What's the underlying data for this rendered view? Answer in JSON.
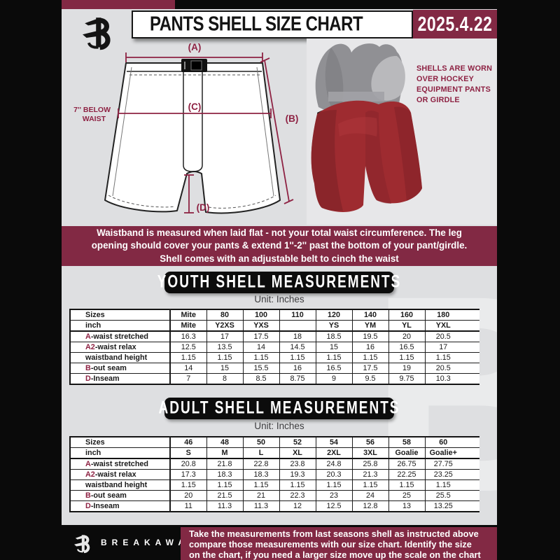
{
  "header": {
    "title": "PANTS SHELL SIZE CHART",
    "date": "2025.4.22"
  },
  "diagram": {
    "label_a": "(A)",
    "label_b": "(B)",
    "label_c": "(C)",
    "label_d": "(D)",
    "below_waist_line1": "7'' BELOW",
    "below_waist_line2": "WAIST",
    "photo_note": "SHELLS ARE WORN OVER HOCKEY EQUIPMENT PANTS OR GIRDLE"
  },
  "info_banner": {
    "lines": [
      "Waistband is measured when laid flat - not your total waist circumference. The leg",
      "opening should cover your pants & extend 1''-2'' past the bottom of your pant/girdle.",
      "Shell comes with an adjustable belt to cinch the waist"
    ]
  },
  "youth": {
    "banner": "YOUTH SHELL MEASUREMENTS",
    "unit": "Unit: Inches",
    "rows": [
      {
        "header": true,
        "thick": false,
        "prefix": "",
        "label": "Sizes",
        "values": [
          "Mite",
          "80",
          "100",
          "110",
          "120",
          "140",
          "160",
          "180"
        ]
      },
      {
        "header": true,
        "thick": true,
        "prefix": "",
        "label": "inch",
        "values": [
          "Mite",
          "Y2XS",
          "YXS",
          "",
          "YS",
          "YM",
          "YL",
          "YXL"
        ]
      },
      {
        "header": false,
        "thick": false,
        "prefix": "A",
        "label": "-waist stretched",
        "values": [
          "16.3",
          "17",
          "17.5",
          "18",
          "18.5",
          "19.5",
          "20",
          "20.5"
        ]
      },
      {
        "header": false,
        "thick": false,
        "prefix": "A2",
        "label": "-waist relax",
        "values": [
          "12.5",
          "13.5",
          "14",
          "14.5",
          "15",
          "16",
          "16.5",
          "17"
        ]
      },
      {
        "header": false,
        "thick": false,
        "prefix": "",
        "label": "waistband height",
        "values": [
          "1.15",
          "1.15",
          "1.15",
          "1.15",
          "1.15",
          "1.15",
          "1.15",
          "1.15"
        ]
      },
      {
        "header": false,
        "thick": false,
        "prefix": "B",
        "label": "-out seam",
        "values": [
          "14",
          "15",
          "15.5",
          "16",
          "16.5",
          "17.5",
          "19",
          "20.5"
        ]
      },
      {
        "header": false,
        "thick": false,
        "prefix": "D",
        "label": "-Inseam",
        "values": [
          "7",
          "8",
          "8.5",
          "8.75",
          "9",
          "9.5",
          "9.75",
          "10.3"
        ]
      }
    ]
  },
  "adult": {
    "banner": "ADULT SHELL MEASUREMENTS",
    "unit": "Unit: Inches",
    "rows": [
      {
        "header": true,
        "thick": false,
        "prefix": "",
        "label": "Sizes",
        "values": [
          "46",
          "48",
          "50",
          "52",
          "54",
          "56",
          "58",
          "60"
        ]
      },
      {
        "header": true,
        "thick": true,
        "prefix": "",
        "label": "inch",
        "values": [
          "S",
          "M",
          "L",
          "XL",
          "2XL",
          "3XL",
          "Goalie",
          "Goalie+"
        ]
      },
      {
        "header": false,
        "thick": false,
        "prefix": "A",
        "label": "-waist stretched",
        "values": [
          "20.8",
          "21.8",
          "22.8",
          "23.8",
          "24.8",
          "25.8",
          "26.75",
          "27.75"
        ]
      },
      {
        "header": false,
        "thick": false,
        "prefix": "A2",
        "label": "-waist relax",
        "values": [
          "17.3",
          "18.3",
          "18.3",
          "19.3",
          "20.3",
          "21.3",
          "22.25",
          "23.25"
        ]
      },
      {
        "header": false,
        "thick": false,
        "prefix": "",
        "label": "waistband height",
        "values": [
          "1.15",
          "1.15",
          "1.15",
          "1.15",
          "1.15",
          "1.15",
          "1.15",
          "1.15"
        ]
      },
      {
        "header": false,
        "thick": false,
        "prefix": "B",
        "label": "-out seam",
        "values": [
          "20",
          "21.5",
          "21",
          "22.3",
          "23",
          "24",
          "25",
          "25.5"
        ]
      },
      {
        "header": false,
        "thick": false,
        "prefix": "D",
        "label": "-Inseam",
        "values": [
          "11",
          "11.3",
          "11.3",
          "12",
          "12.5",
          "12.8",
          "13",
          "13.25"
        ]
      }
    ]
  },
  "footer": {
    "brand": "BREAKAWAY",
    "lines": [
      "Take the measurements from last seasons shell as instructed above",
      "compare those measurements  with our size chart. Identify the size",
      "on the chart, if you need a larger size move up the scale on the chart"
    ]
  },
  "colors": {
    "maroon": "#822944",
    "accent_maroon": "#8e2243",
    "page_gray": "#dedfe1",
    "black": "#0a0a0a",
    "shell_red": "#9e2b30"
  },
  "watermark_letter": "B"
}
